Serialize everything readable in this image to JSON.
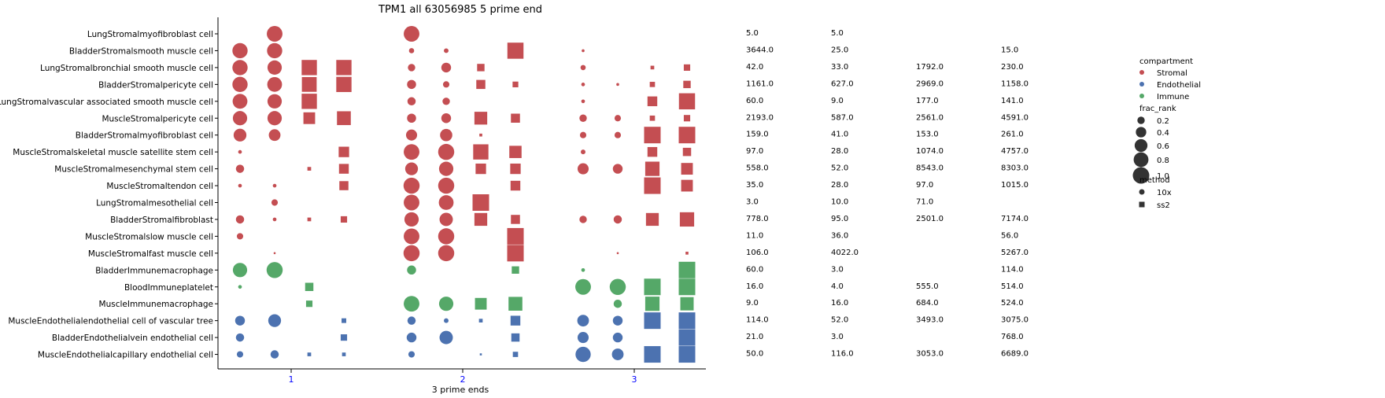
{
  "chart_data": {
    "type": "scatter",
    "title": "TPM1 all 63056985 5 prime end",
    "xlabel": "3 prime ends",
    "ylabel": "",
    "x_ticks": [
      "1",
      "2",
      "3"
    ],
    "y_categories": [
      "LungStromalmyofibroblast cell",
      "BladderStromalsmooth muscle cell",
      "LungStromalbronchial smooth muscle cell",
      "BladderStromalpericyte cell",
      "LungStromalvascular associated smooth muscle cell",
      "MuscleStromalpericyte cell",
      "BladderStromalmyofibroblast cell",
      "MuscleStromalskeletal muscle satellite stem cell",
      "MuscleStromalmesenchymal stem cell",
      "MuscleStromaltendon cell",
      "LungStromalmesothelial cell",
      "BladderStromalfibroblast",
      "MuscleStromalslow muscle cell",
      "MuscleStromalfast muscle cell",
      "BladderImmunemacrophage",
      "BloodImmuneplatelet",
      "MuscleImmunemacrophage",
      "MuscleEndothelialendothelial cell of vascular tree",
      "BladderEndothelialvein endothelial cell",
      "MuscleEndothelialcapillary endothelial cell"
    ],
    "row_compartment": [
      "Stromal",
      "Stromal",
      "Stromal",
      "Stromal",
      "Stromal",
      "Stromal",
      "Stromal",
      "Stromal",
      "Stromal",
      "Stromal",
      "Stromal",
      "Stromal",
      "Stromal",
      "Stromal",
      "Immune",
      "Immune",
      "Immune",
      "Endothelial",
      "Endothelial",
      "Endothelial"
    ],
    "compartment_colors": {
      "Stromal": "#c44e52",
      "Endothelial": "#4c72b0",
      "Immune": "#55a868"
    },
    "column_groups": [
      {
        "x": 1,
        "columns": [
          {
            "method": "10x",
            "slot": 0
          },
          {
            "method": "10x",
            "slot": 1
          },
          {
            "method": "ss2",
            "slot": 2
          },
          {
            "method": "ss2",
            "slot": 3
          }
        ]
      },
      {
        "x": 2,
        "columns": [
          {
            "method": "10x",
            "slot": 0
          },
          {
            "method": "10x",
            "slot": 1
          },
          {
            "method": "ss2",
            "slot": 2
          },
          {
            "method": "ss2",
            "slot": 3
          }
        ]
      },
      {
        "x": 3,
        "columns": [
          {
            "method": "10x",
            "slot": 0
          },
          {
            "method": "10x",
            "slot": 1
          },
          {
            "method": "ss2",
            "slot": 2
          },
          {
            "method": "ss2",
            "slot": 3
          }
        ]
      }
    ],
    "frac_rank": [
      [
        0,
        0.9,
        0,
        0,
        0.9,
        0,
        0,
        0,
        0,
        0,
        0,
        0
      ],
      [
        0.85,
        0.85,
        0,
        0,
        0.1,
        0.08,
        0,
        0.95,
        0.03,
        0,
        0,
        0
      ],
      [
        0.85,
        0.75,
        0.85,
        0.85,
        0.2,
        0.35,
        0.2,
        0,
        0.1,
        0,
        0.05,
        0.15
      ],
      [
        0.85,
        0.8,
        0.8,
        0.85,
        0.3,
        0.15,
        0.3,
        0.12,
        0.05,
        0.03,
        0.1,
        0.2
      ],
      [
        0.8,
        0.75,
        0.85,
        0,
        0.25,
        0.2,
        0,
        0,
        0.05,
        0,
        0.35,
        0.95
      ],
      [
        0.75,
        0.75,
        0.5,
        0.7,
        0.3,
        0.35,
        0.6,
        0.3,
        0.2,
        0.15,
        0.1,
        0.15
      ],
      [
        0.6,
        0.5,
        0,
        0,
        0.45,
        0.55,
        0.03,
        0,
        0.15,
        0.15,
        1.0,
        1.0
      ],
      [
        0.05,
        0,
        0,
        0.4,
        0.9,
        0.95,
        0.85,
        0.55,
        0.08,
        0,
        0.35,
        0.25
      ],
      [
        0.25,
        0,
        0.05,
        0.35,
        0.6,
        0.75,
        0.4,
        0.4,
        0.45,
        0.35,
        0.75,
        0.5
      ],
      [
        0.05,
        0.05,
        0,
        0.3,
        0.95,
        0.95,
        0,
        0.35,
        0,
        0,
        1.0,
        0.5
      ],
      [
        0,
        0.15,
        0,
        0,
        0.9,
        0.8,
        1.0,
        0,
        0,
        0,
        0,
        0
      ],
      [
        0.25,
        0.05,
        0.05,
        0.15,
        0.75,
        0.65,
        0.6,
        0.3,
        0.2,
        0.25,
        0.6,
        0.75
      ],
      [
        0.15,
        0,
        0,
        0,
        0.9,
        0.95,
        0,
        1.0,
        0,
        0,
        0,
        0
      ],
      [
        0,
        0.01,
        0,
        0,
        0.95,
        0.95,
        0,
        1.0,
        0,
        0.01,
        0,
        0.03
      ],
      [
        0.75,
        0.95,
        0,
        0,
        0.3,
        0,
        0,
        0.2,
        0.05,
        0,
        0,
        1.0
      ],
      [
        0.05,
        0,
        0.25,
        0,
        0,
        0,
        0,
        0,
        0.9,
        0.95,
        1.0,
        1.0
      ],
      [
        0,
        0,
        0.15,
        0,
        0.9,
        0.75,
        0.5,
        0.7,
        0,
        0.25,
        0.75,
        0.65
      ],
      [
        0.35,
        0.6,
        0,
        0.08,
        0.25,
        0.08,
        0.05,
        0.35,
        0.5,
        0.35,
        1.0,
        1.0
      ],
      [
        0.25,
        0,
        0,
        0.15,
        0.35,
        0.65,
        0,
        0.25,
        0.45,
        0.35,
        0,
        1.0
      ],
      [
        0.15,
        0.25,
        0.05,
        0.05,
        0.15,
        0,
        0.01,
        0.1,
        0.85,
        0.5,
        1.0,
        1.0
      ]
    ],
    "side_table": [
      [
        "5.0",
        "5.0",
        "",
        ""
      ],
      [
        "3644.0",
        "25.0",
        "",
        "15.0"
      ],
      [
        "42.0",
        "33.0",
        "1792.0",
        "230.0"
      ],
      [
        "1161.0",
        "627.0",
        "2969.0",
        "1158.0"
      ],
      [
        "60.0",
        "9.0",
        "177.0",
        "141.0"
      ],
      [
        "2193.0",
        "587.0",
        "2561.0",
        "4591.0"
      ],
      [
        "159.0",
        "41.0",
        "153.0",
        "261.0"
      ],
      [
        "97.0",
        "28.0",
        "1074.0",
        "4757.0"
      ],
      [
        "558.0",
        "52.0",
        "8543.0",
        "8303.0"
      ],
      [
        "35.0",
        "28.0",
        "97.0",
        "1015.0"
      ],
      [
        "3.0",
        "10.0",
        "71.0",
        ""
      ],
      [
        "778.0",
        "95.0",
        "2501.0",
        "7174.0"
      ],
      [
        "11.0",
        "36.0",
        "",
        "56.0"
      ],
      [
        "106.0",
        "4022.0",
        "",
        "5267.0"
      ],
      [
        "60.0",
        "3.0",
        "",
        "114.0"
      ],
      [
        "16.0",
        "4.0",
        "555.0",
        "514.0"
      ],
      [
        "9.0",
        "16.0",
        "684.0",
        "524.0"
      ],
      [
        "114.0",
        "52.0",
        "3493.0",
        "3075.0"
      ],
      [
        "21.0",
        "3.0",
        "",
        "768.0"
      ],
      [
        "50.0",
        "116.0",
        "3053.0",
        "6689.0"
      ]
    ],
    "legend": {
      "placement": "right",
      "compartment_title": "compartment",
      "compartment_items": [
        {
          "label": "Stromal",
          "color": "#c44e52"
        },
        {
          "label": "Endothelial",
          "color": "#4c72b0"
        },
        {
          "label": "Immune",
          "color": "#55a868"
        }
      ],
      "frac_rank_title": "frac_rank",
      "frac_rank_items": [
        {
          "label": "0.2",
          "value": 0.2
        },
        {
          "label": "0.4",
          "value": 0.4
        },
        {
          "label": "0.6",
          "value": 0.6
        },
        {
          "label": "0.8",
          "value": 0.8
        },
        {
          "label": "1.0",
          "value": 1.0
        }
      ],
      "method_title": "method",
      "method_items": [
        {
          "label": "10x",
          "marker": "circle"
        },
        {
          "label": "ss2",
          "marker": "square"
        }
      ]
    },
    "colors": {
      "tick_label": "#0000ff",
      "axis": "#000000",
      "legend_marker": "#333333"
    }
  }
}
